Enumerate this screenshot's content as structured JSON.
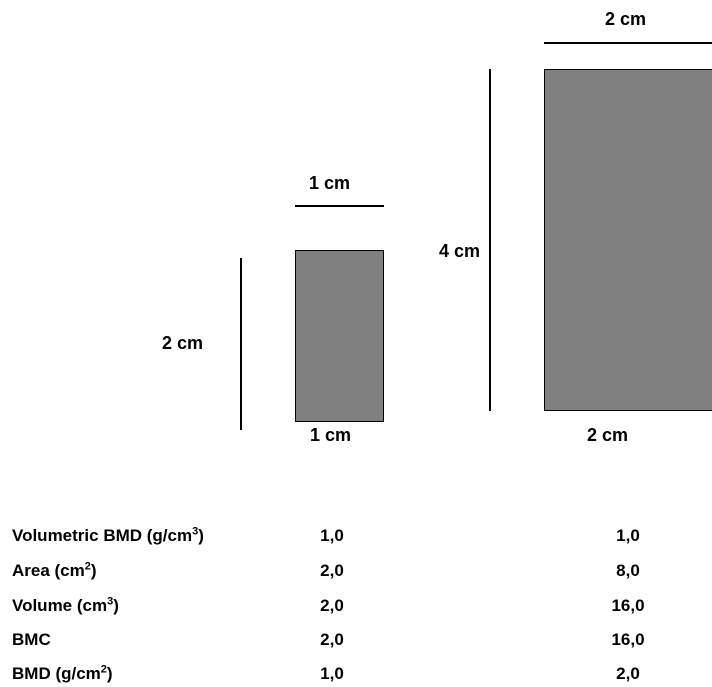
{
  "colors": {
    "block_fill": "#808080",
    "line": "#000000"
  },
  "small_block": {
    "top_label": "1 cm",
    "bottom_label": "1 cm",
    "side_label": "2 cm"
  },
  "large_block": {
    "top_label": "2 cm",
    "bottom_label": "2 cm",
    "side_label": "4 cm"
  },
  "table": {
    "rows": [
      {
        "label_pre": "Volumetric BMD (g/cm",
        "sup": "3",
        "label_post": ")",
        "small": "1,0",
        "large": "1,0"
      },
      {
        "label_pre": "Area (cm",
        "sup": "2",
        "label_post": ")",
        "small": "2,0",
        "large": "8,0"
      },
      {
        "label_pre": "Volume (cm",
        "sup": "3",
        "label_post": ")",
        "small": "2,0",
        "large": "16,0"
      },
      {
        "label_pre": "BMC",
        "sup": "",
        "label_post": "",
        "small": "2,0",
        "large": "16,0"
      },
      {
        "label_pre": "BMD (g/cm",
        "sup": "2",
        "label_post": ")",
        "small": "1,0",
        "large": "2,0"
      }
    ]
  }
}
